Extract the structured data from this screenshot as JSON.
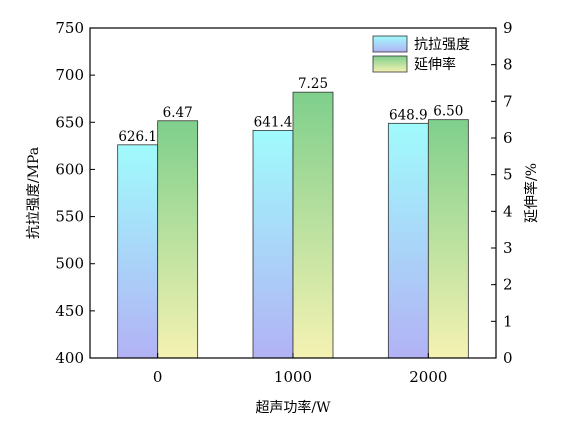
{
  "chart_data": {
    "type": "bar",
    "categories": [
      "0",
      "1000",
      "2000"
    ],
    "series": [
      {
        "name": "抗拉强度",
        "axis": "left",
        "values": [
          626.1,
          641.4,
          648.9
        ],
        "data_labels": [
          "626.1",
          "641.4",
          "648.9"
        ],
        "gradient": [
          "#a0fbfc",
          "#b2b2f5"
        ]
      },
      {
        "name": "延伸率",
        "axis": "right",
        "values": [
          6.47,
          7.25,
          6.5
        ],
        "data_labels": [
          "6.47",
          "7.25",
          "6.50"
        ],
        "gradient": [
          "#7fcf8c",
          "#f5f2b2"
        ]
      }
    ],
    "xlabel": "超声功率/W",
    "ylabel_left": "抗拉强度/MPa",
    "ylabel_right": "延伸率/%",
    "ylim_left": [
      400,
      750
    ],
    "ylim_right": [
      0,
      9
    ],
    "yticks_left": [
      "400",
      "450",
      "500",
      "550",
      "600",
      "650",
      "700",
      "750"
    ],
    "yticks_right": [
      "0",
      "1",
      "2",
      "3",
      "4",
      "5",
      "6",
      "7",
      "8",
      "9"
    ],
    "xticks": [
      "0",
      "1000",
      "2000"
    ],
    "grid": false,
    "legend_position": "top-right"
  }
}
